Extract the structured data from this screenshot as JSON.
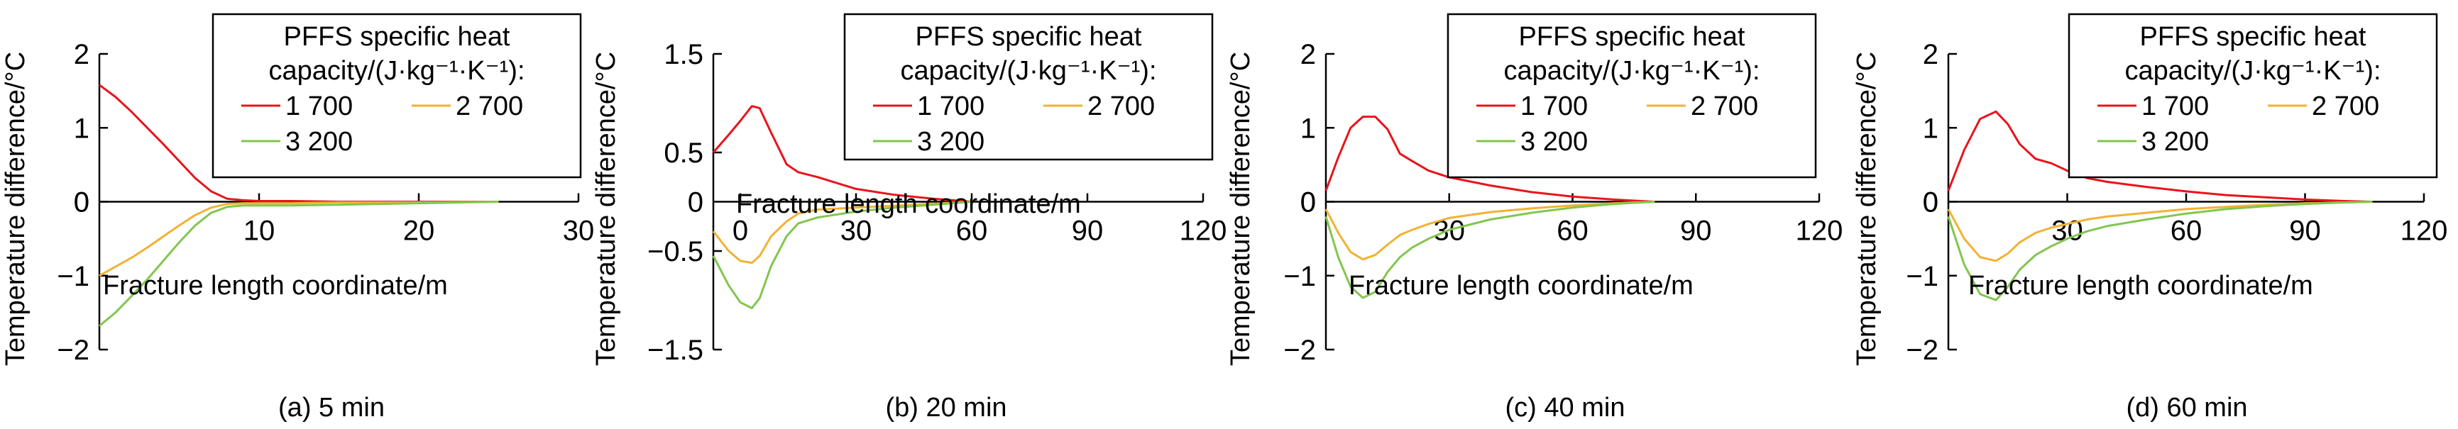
{
  "colors": {
    "series_1700": "#e8141b",
    "series_2700": "#f2b233",
    "series_3200": "#82c64e",
    "axis": "#000000"
  },
  "chart_data": [
    {
      "type": "line",
      "caption": "(a) 5 min",
      "xlabel": "Fracture length coordinate/m",
      "ylabel": "Temperature difference/°C",
      "xlim": [
        0,
        30
      ],
      "ylim": [
        -2,
        2
      ],
      "xticks": [
        10,
        20,
        30
      ],
      "yticks": [
        -2,
        -1,
        0,
        1,
        2
      ],
      "xtick_labels": [
        "10",
        "20",
        "30"
      ],
      "ytick_labels": [
        "−2",
        "−1",
        "0",
        "1",
        "2"
      ],
      "legend": {
        "title_line1": "PFFS specific heat",
        "title_line2": "capacity/(J·kg⁻¹·K⁻¹):",
        "placement": "top-right"
      },
      "series": [
        {
          "name": "1 700",
          "color": "#e8141b",
          "x": [
            0,
            1,
            2,
            3,
            4,
            5,
            6,
            7,
            8,
            9,
            10,
            12,
            15,
            20,
            25
          ],
          "y": [
            1.58,
            1.42,
            1.22,
            1.0,
            0.78,
            0.55,
            0.32,
            0.14,
            0.04,
            0.02,
            0.01,
            0.01,
            0.0,
            0.0,
            0.0
          ]
        },
        {
          "name": "2 700",
          "color": "#f2b233",
          "x": [
            0,
            1,
            2,
            3,
            4,
            5,
            6,
            7,
            8,
            9,
            10,
            12,
            15,
            20,
            25
          ],
          "y": [
            -1.0,
            -0.88,
            -0.76,
            -0.62,
            -0.47,
            -0.32,
            -0.18,
            -0.08,
            -0.03,
            -0.02,
            -0.02,
            -0.02,
            -0.01,
            -0.01,
            0.0
          ]
        },
        {
          "name": "3 200",
          "color": "#82c64e",
          "x": [
            0,
            1,
            2,
            3,
            4,
            5,
            6,
            7,
            8,
            9,
            10,
            12,
            15,
            20,
            25
          ],
          "y": [
            -1.68,
            -1.5,
            -1.28,
            -1.05,
            -0.8,
            -0.55,
            -0.32,
            -0.15,
            -0.07,
            -0.05,
            -0.05,
            -0.05,
            -0.04,
            -0.02,
            0.0
          ]
        }
      ]
    },
    {
      "type": "line",
      "caption": "(b) 20 min",
      "xlabel": "Fracture length coordinate/m",
      "ylabel": "Temperature difference/°C",
      "xlim": [
        -7,
        120
      ],
      "ylim": [
        -1.5,
        1.5
      ],
      "xticks": [
        0,
        30,
        60,
        90,
        120
      ],
      "yticks": [
        -1.5,
        -0.5,
        0.5,
        1.5
      ],
      "xtick_labels": [
        "0",
        "30",
        "60",
        "90",
        "120"
      ],
      "ytick_labels": [
        "−1.5",
        "−0.5",
        "0.5",
        "1.5"
      ],
      "legend": {
        "title_line1": "PFFS specific heat",
        "title_line2": "capacity/(J·kg⁻¹·K⁻¹):",
        "placement": "top-right"
      },
      "series": [
        {
          "name": "1 700",
          "color": "#e8141b",
          "x": [
            -7,
            -3,
            0,
            3,
            5,
            8,
            12,
            15,
            20,
            30,
            40,
            50,
            60
          ],
          "y": [
            0.5,
            0.68,
            0.82,
            0.97,
            0.95,
            0.7,
            0.38,
            0.3,
            0.25,
            0.13,
            0.07,
            0.03,
            0.0
          ]
        },
        {
          "name": "2 700",
          "color": "#f2b233",
          "x": [
            -7,
            -3,
            0,
            3,
            5,
            8,
            12,
            15,
            20,
            30,
            40,
            50,
            60
          ],
          "y": [
            -0.3,
            -0.5,
            -0.6,
            -0.62,
            -0.55,
            -0.35,
            -0.2,
            -0.12,
            -0.08,
            -0.06,
            -0.04,
            -0.02,
            0.0
          ]
        },
        {
          "name": "3 200",
          "color": "#82c64e",
          "x": [
            -7,
            -3,
            0,
            3,
            5,
            8,
            12,
            15,
            20,
            30,
            40,
            50,
            60
          ],
          "y": [
            -0.55,
            -0.85,
            -1.02,
            -1.08,
            -0.98,
            -0.65,
            -0.35,
            -0.22,
            -0.16,
            -0.1,
            -0.06,
            -0.03,
            0.0
          ]
        }
      ]
    },
    {
      "type": "line",
      "caption": "(c) 40 min",
      "xlabel": "Fracture length coordinate/m",
      "ylabel": "Temperature difference/°C",
      "xlim": [
        0,
        120
      ],
      "ylim": [
        -2,
        2
      ],
      "xticks": [
        30,
        60,
        90,
        120
      ],
      "yticks": [
        -2,
        -1,
        0,
        1,
        2
      ],
      "xtick_labels": [
        "30",
        "60",
        "90",
        "120"
      ],
      "ytick_labels": [
        "−2",
        "−1",
        "0",
        "1",
        "2"
      ],
      "legend": {
        "title_line1": "PFFS specific heat",
        "title_line2": "capacity/(J·kg⁻¹·K⁻¹):",
        "placement": "top-right"
      },
      "series": [
        {
          "name": "1 700",
          "color": "#e8141b",
          "x": [
            0,
            3,
            6,
            9,
            12,
            15,
            18,
            21,
            25,
            30,
            40,
            50,
            60,
            70,
            80
          ],
          "y": [
            0.15,
            0.6,
            1.0,
            1.15,
            1.15,
            0.98,
            0.65,
            0.55,
            0.42,
            0.33,
            0.22,
            0.13,
            0.07,
            0.03,
            0.0
          ]
        },
        {
          "name": "2 700",
          "color": "#f2b233",
          "x": [
            0,
            3,
            6,
            9,
            12,
            15,
            18,
            21,
            25,
            30,
            40,
            50,
            60,
            70,
            80
          ],
          "y": [
            -0.1,
            -0.42,
            -0.68,
            -0.78,
            -0.72,
            -0.58,
            -0.45,
            -0.38,
            -0.3,
            -0.22,
            -0.14,
            -0.09,
            -0.05,
            -0.02,
            0.0
          ]
        },
        {
          "name": "3 200",
          "color": "#82c64e",
          "x": [
            0,
            3,
            6,
            9,
            12,
            15,
            18,
            21,
            25,
            30,
            40,
            50,
            60,
            70,
            80
          ],
          "y": [
            -0.2,
            -0.75,
            -1.15,
            -1.3,
            -1.22,
            -0.95,
            -0.75,
            -0.62,
            -0.5,
            -0.38,
            -0.24,
            -0.15,
            -0.08,
            -0.03,
            0.0
          ]
        }
      ]
    },
    {
      "type": "line",
      "caption": "(d) 60 min",
      "xlabel": "Fracture length coordinate/m",
      "ylabel": "Temperature difference/°C",
      "xlim": [
        0,
        120
      ],
      "ylim": [
        -2,
        2
      ],
      "xticks": [
        30,
        60,
        90,
        120
      ],
      "yticks": [
        -2,
        -1,
        0,
        1,
        2
      ],
      "xtick_labels": [
        "30",
        "60",
        "90",
        "120"
      ],
      "ytick_labels": [
        "−2",
        "−1",
        "0",
        "1",
        "2"
      ],
      "legend": {
        "title_line1": "PFFS specific heat",
        "title_line2": "capacity/(J·kg⁻¹·K⁻¹):",
        "placement": "top-right"
      },
      "series": [
        {
          "name": "1 700",
          "color": "#e8141b",
          "x": [
            0,
            4,
            8,
            12,
            15,
            18,
            22,
            26,
            30,
            35,
            40,
            50,
            60,
            70,
            80,
            90,
            100,
            107
          ],
          "y": [
            0.15,
            0.7,
            1.12,
            1.22,
            1.05,
            0.78,
            0.58,
            0.52,
            0.42,
            0.32,
            0.27,
            0.2,
            0.14,
            0.09,
            0.06,
            0.03,
            0.01,
            0.0
          ]
        },
        {
          "name": "2 700",
          "color": "#f2b233",
          "x": [
            0,
            4,
            8,
            12,
            15,
            18,
            22,
            26,
            30,
            35,
            40,
            50,
            60,
            70,
            80,
            90,
            100,
            107
          ],
          "y": [
            -0.1,
            -0.5,
            -0.75,
            -0.8,
            -0.7,
            -0.55,
            -0.42,
            -0.35,
            -0.3,
            -0.24,
            -0.2,
            -0.15,
            -0.1,
            -0.07,
            -0.04,
            -0.02,
            -0.01,
            0.0
          ]
        },
        {
          "name": "3 200",
          "color": "#82c64e",
          "x": [
            0,
            4,
            8,
            12,
            15,
            18,
            22,
            26,
            30,
            35,
            40,
            50,
            60,
            70,
            80,
            90,
            100,
            107
          ],
          "y": [
            -0.2,
            -0.85,
            -1.25,
            -1.33,
            -1.15,
            -0.92,
            -0.72,
            -0.6,
            -0.5,
            -0.4,
            -0.33,
            -0.24,
            -0.16,
            -0.1,
            -0.06,
            -0.03,
            -0.01,
            0.0
          ]
        }
      ]
    }
  ]
}
